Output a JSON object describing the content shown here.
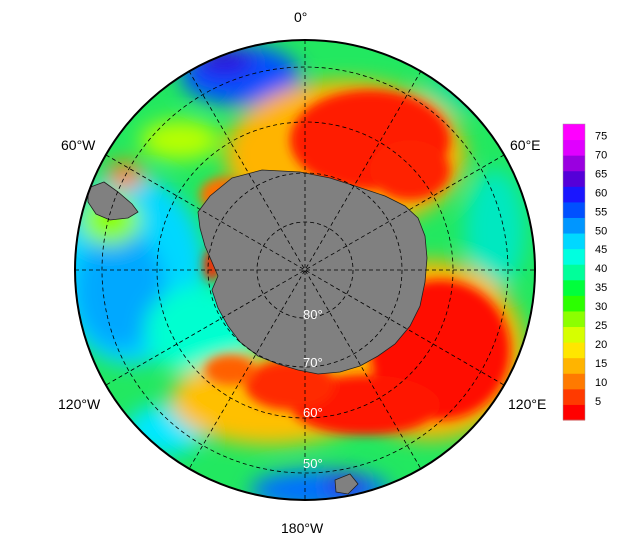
{
  "map": {
    "projection": "south-polar-stereographic",
    "land_color": "#808080",
    "longitude_labels": [
      {
        "text": "0°",
        "position": "top"
      },
      {
        "text": "60°E",
        "position": "upper-right"
      },
      {
        "text": "120°E",
        "position": "lower-right"
      },
      {
        "text": "180°W",
        "position": "bottom"
      },
      {
        "text": "120°W",
        "position": "lower-left"
      },
      {
        "text": "60°W",
        "position": "upper-left"
      }
    ],
    "latitude_labels": [
      "80°",
      "70°",
      "60°",
      "50°"
    ],
    "graticule_latitudes": [
      80,
      70,
      60,
      50
    ],
    "graticule_longitudes": [
      0,
      30,
      60,
      90,
      120,
      150,
      180,
      210,
      240,
      270,
      300,
      330
    ]
  },
  "colorbar": {
    "ticks": [
      "75",
      "70",
      "65",
      "60",
      "55",
      "50",
      "45",
      "40",
      "35",
      "30",
      "25",
      "20",
      "15",
      "10",
      "5"
    ],
    "min": 0,
    "max": 78,
    "colors": [
      "#ff0000",
      "#ff3a00",
      "#ff7a00",
      "#ffb400",
      "#ffe600",
      "#d6ff00",
      "#8cff00",
      "#2cff00",
      "#00ff3c",
      "#00ff9a",
      "#00ffe0",
      "#00d8ff",
      "#0096ff",
      "#0050ff",
      "#1a16ff",
      "#5500d8",
      "#9a00e0",
      "#e000ff",
      "#ff00ff"
    ]
  }
}
